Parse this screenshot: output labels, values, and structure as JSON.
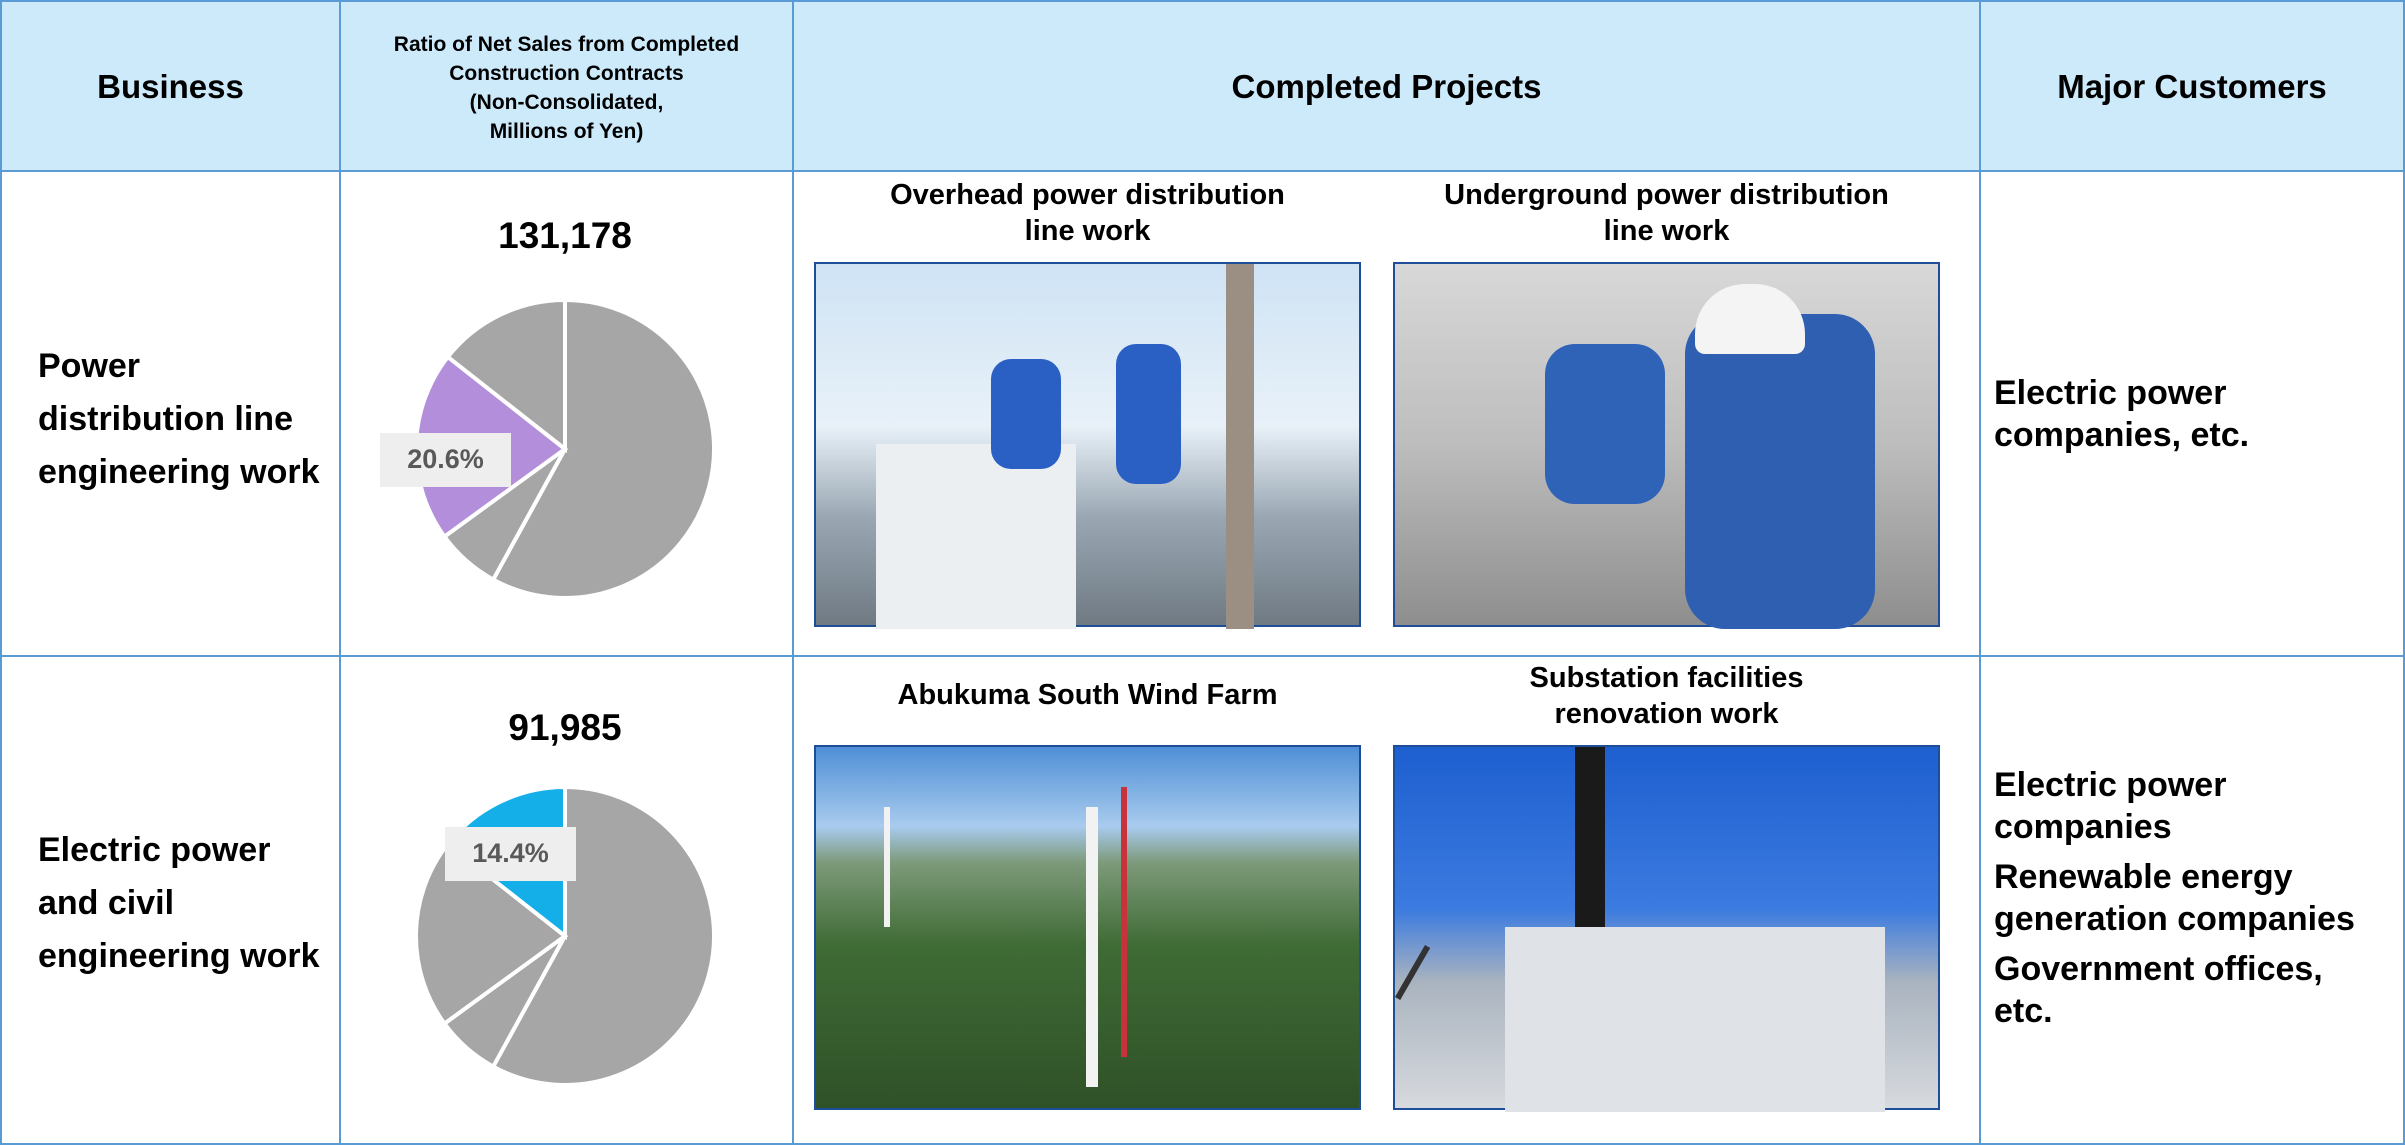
{
  "table": {
    "header": [
      "Business",
      "Ratio of Net Sales from Completed\nConstruction Contracts\n(Non-Consolidated,\nMillions of Yen)",
      "Completed Projects",
      "Major Customers"
    ],
    "rows": [
      {
        "business": "Power\ndistribution line\nengineering work",
        "projects": [
          "Overhead power distribution\nline work",
          "Underground power distribution\nline work"
        ],
        "customers": [
          "Electric power\ncompanies, etc."
        ]
      },
      {
        "business": "Electric power\nand civil\nengineering work",
        "projects": [
          "Abukuma South Wind Farm",
          "Substation facilities\nrenovation work"
        ],
        "customers": [
          "Electric power\ncompanies",
          "Renewable energy\ngeneration companies",
          "Government offices,\netc."
        ]
      }
    ]
  },
  "chart_data": [
    {
      "type": "pie",
      "title": "131,178",
      "values": [
        58,
        7,
        20.6,
        14.4
      ],
      "value_labels": [
        null,
        null,
        "20.6%",
        null
      ],
      "colors": [
        "#a6a6a6",
        "#a6a6a6",
        "#b38fdb",
        "#a6a6a6"
      ]
    },
    {
      "type": "pie",
      "title": "91,985",
      "values": [
        58,
        7,
        20.6,
        14.4
      ],
      "value_labels": [
        null,
        null,
        null,
        "14.4%"
      ],
      "colors": [
        "#a6a6a6",
        "#a6a6a6",
        "#a6a6a6",
        "#14aee8"
      ]
    }
  ]
}
